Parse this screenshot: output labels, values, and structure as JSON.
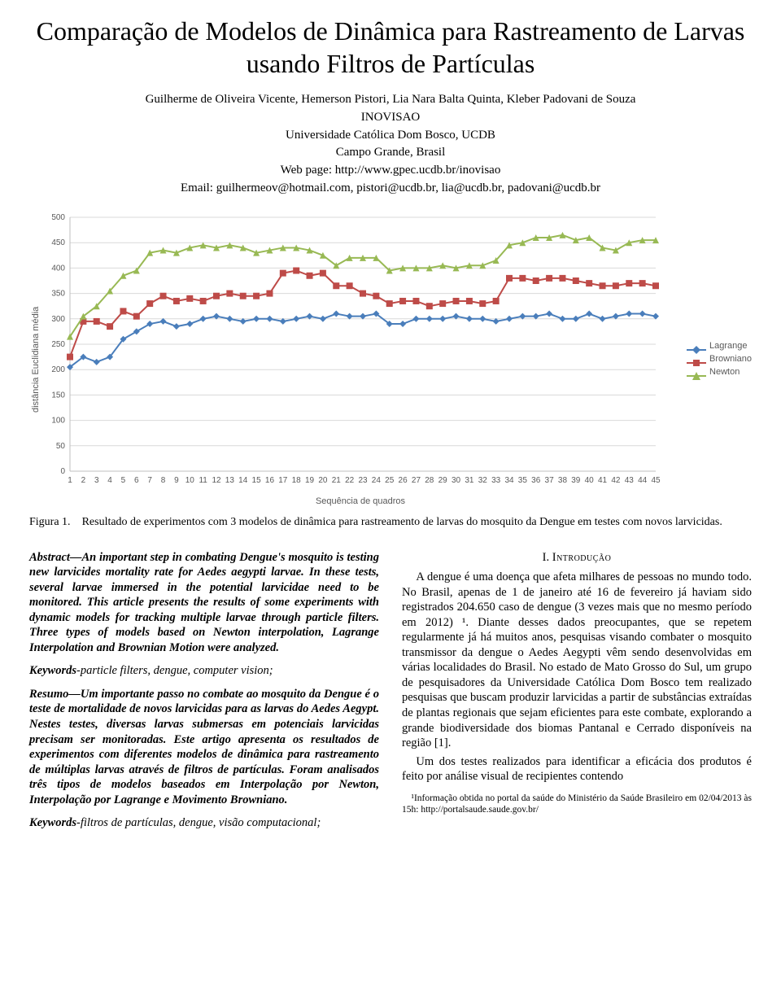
{
  "header": {
    "title": "Comparação de Modelos de Dinâmica para Rastreamento de Larvas usando Filtros de Partículas",
    "authors_line": "Guilherme de Oliveira Vicente, Hemerson Pistori, Lia Nara Balta Quinta, Kleber Padovani de Souza",
    "affil1": "INOVISAO",
    "affil2": "Universidade Católica Dom Bosco, UCDB",
    "affil3": "Campo Grande, Brasil",
    "web": "Web page: http://www.gpec.ucdb.br/inovisao",
    "email": "Email: guilhermeov@hotmail.com, pistori@ucdb.br, lia@ucdb.br, padovani@ucdb.br"
  },
  "chart": {
    "type": "line",
    "ylabel": "distância Euclidiana média",
    "xlabel": "Sequência de quadros",
    "xlim": [
      1,
      45
    ],
    "ylim": [
      0,
      500
    ],
    "ytick_step": 50,
    "background_color": "#ffffff",
    "grid_color": "#d9d9d9",
    "axis_color": "#bfbfbf",
    "tick_fontsize": 10,
    "label_fontsize": 11,
    "line_width": 2,
    "marker_size": 8,
    "x": [
      1,
      2,
      3,
      4,
      5,
      6,
      7,
      8,
      9,
      10,
      11,
      12,
      13,
      14,
      15,
      16,
      17,
      18,
      19,
      20,
      21,
      22,
      23,
      24,
      25,
      26,
      27,
      28,
      29,
      30,
      31,
      32,
      33,
      34,
      35,
      36,
      37,
      38,
      39,
      40,
      41,
      42,
      43,
      44,
      45
    ],
    "series": [
      {
        "name": "Lagrange",
        "color": "#4a7ebb",
        "marker": "diamond",
        "y": [
          205,
          225,
          215,
          225,
          260,
          275,
          290,
          295,
          285,
          290,
          300,
          305,
          300,
          295,
          300,
          300,
          295,
          300,
          305,
          300,
          310,
          305,
          305,
          310,
          290,
          290,
          300,
          300,
          300,
          305,
          300,
          300,
          295,
          300,
          305,
          305,
          310,
          300,
          300,
          310,
          300,
          305,
          310,
          310,
          305
        ]
      },
      {
        "name": "Browniano",
        "color": "#be4b48",
        "marker": "square",
        "y": [
          225,
          295,
          295,
          285,
          315,
          305,
          330,
          345,
          335,
          340,
          335,
          345,
          350,
          345,
          345,
          350,
          390,
          395,
          385,
          390,
          365,
          365,
          350,
          345,
          330,
          335,
          335,
          325,
          330,
          335,
          335,
          330,
          335,
          380,
          380,
          375,
          380,
          380,
          375,
          370,
          365,
          365,
          370,
          370,
          365
        ]
      },
      {
        "name": "Newton",
        "color": "#98b954",
        "marker": "triangle",
        "y": [
          265,
          305,
          325,
          355,
          385,
          395,
          430,
          435,
          430,
          440,
          445,
          440,
          445,
          440,
          430,
          435,
          440,
          440,
          435,
          425,
          405,
          420,
          420,
          420,
          395,
          400,
          400,
          400,
          405,
          400,
          405,
          405,
          415,
          445,
          450,
          460,
          460,
          465,
          455,
          460,
          440,
          435,
          450,
          455,
          455
        ]
      }
    ],
    "legend": [
      "Lagrange",
      "Browniano",
      "Newton"
    ],
    "legend_colors": [
      "#4a7ebb",
      "#be4b48",
      "#98b954"
    ]
  },
  "caption": {
    "label": "Figura 1.",
    "text": "Resultado de experimentos com 3 modelos de dinâmica para rastreamento de larvas do mosquito da Dengue em testes com novos larvicidas."
  },
  "left": {
    "abs_label": "Abstract",
    "abs_en": "—An important step in combating Dengue's mosquito is testing new larvicides mortality rate for Aedes aegypti larvae. In these tests, several larvae immersed in the potential larvicidae need to be monitored. This article presents the results of some experiments with dynamic models for tracking multiple larvae through particle filters. Three types of models based on Newton interpolation, Lagrange Interpolation and Brownian Motion were analyzed.",
    "kw_en_label": "Keywords",
    "kw_en": "-particle filters, dengue, computer vision;",
    "res_label": "Resumo",
    "res_pt": "—Um importante passo no combate ao mosquito da Dengue é o teste de mortalidade de novos larvicidas para as larvas do Aedes Aegypt. Nestes testes, diversas larvas submersas em potenciais larvicidas precisam ser monitoradas. Este artigo apresenta os resultados de experimentos com diferentes modelos de dinâmica para rastreamento de múltiplas larvas através de filtros de partículas. Foram analisados três tipos de modelos baseados em Interpolação por Newton, Interpolação por Lagrange e Movimento Browniano.",
    "kw_pt_label": "Keywords",
    "kw_pt": "-filtros de partículas, dengue, visão computacional;"
  },
  "right": {
    "sec_num": "I.",
    "sec_title": "Introdução",
    "p1": "A dengue é uma doença que afeta milhares de pessoas no mundo todo. No Brasil, apenas de 1 de janeiro até 16 de fevereiro já haviam sido registrados 204.650 caso de dengue (3 vezes mais que no mesmo período em 2012) ¹. Diante desses dados preocupantes, que se repetem regularmente já há muitos anos, pesquisas visando combater o mosquito transmissor da dengue o Aedes Aegypti vêm sendo desenvolvidas em várias localidades do Brasil. No estado de Mato Grosso do Sul, um grupo de pesquisadores da Universidade Católica Dom Bosco tem realizado pesquisas que buscam produzir larvicidas a partir de substâncias extraídas de plantas regionais que sejam eficientes para este combate, explorando a grande biodiversidade dos biomas Pantanal e Cerrado disponíveis na região [1].",
    "p2": "Um dos testes realizados para identificar a eficácia dos produtos é feito por análise visual de recipientes contendo",
    "footnote": "¹Informação obtida no portal da saúde do Ministério da Saúde Brasileiro em 02/04/2013 às 15h: http://portalsaude.saude.gov.br/"
  }
}
